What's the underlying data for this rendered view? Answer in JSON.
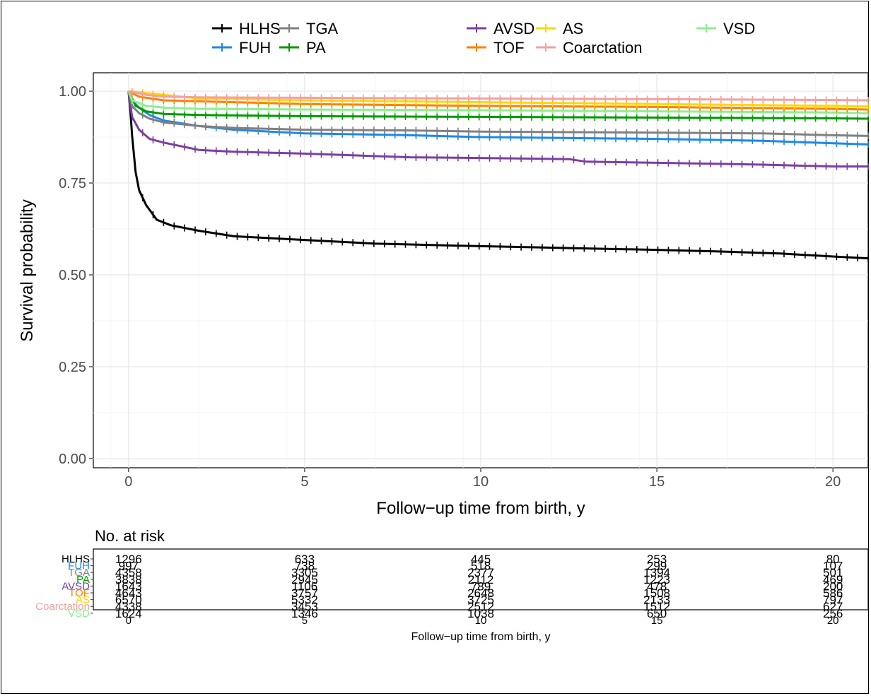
{
  "chart_data": {
    "type": "line",
    "title": "",
    "xlabel": "Follow−up time from birth, y",
    "ylabel": "Survival probability",
    "xlim": [
      -1,
      21
    ],
    "ylim": [
      -0.025,
      1.05
    ],
    "xticks": [
      0,
      5,
      10,
      15,
      20
    ],
    "yticks": [
      0.0,
      0.25,
      0.5,
      0.75,
      1.0
    ],
    "ytick_labels": [
      "0.00",
      "0.25",
      "0.50",
      "0.75",
      "1.00"
    ],
    "grid": true,
    "legend_position": "top",
    "series": [
      {
        "name": "HLHS",
        "color": "#000000",
        "x": [
          0,
          0.05,
          0.1,
          0.2,
          0.3,
          0.5,
          0.8,
          1.2,
          2,
          3,
          5,
          7,
          10,
          13,
          15,
          17,
          18.5,
          20,
          21
        ],
        "y": [
          1.0,
          0.95,
          0.88,
          0.78,
          0.73,
          0.69,
          0.65,
          0.635,
          0.62,
          0.605,
          0.595,
          0.585,
          0.578,
          0.572,
          0.568,
          0.563,
          0.558,
          0.55,
          0.545
        ]
      },
      {
        "name": "FUH",
        "color": "#1E88E5",
        "x": [
          0,
          0.1,
          0.3,
          0.6,
          1,
          2,
          3,
          5,
          8,
          10,
          15,
          18,
          20,
          21
        ],
        "y": [
          1.0,
          0.975,
          0.955,
          0.935,
          0.92,
          0.905,
          0.895,
          0.885,
          0.88,
          0.875,
          0.87,
          0.865,
          0.858,
          0.855
        ]
      },
      {
        "name": "TGA",
        "color": "#808080",
        "x": [
          0,
          0.1,
          0.3,
          0.6,
          1,
          2,
          3,
          5,
          8,
          10,
          15,
          18,
          20,
          21
        ],
        "y": [
          1.0,
          0.96,
          0.94,
          0.925,
          0.915,
          0.905,
          0.9,
          0.895,
          0.893,
          0.89,
          0.887,
          0.885,
          0.88,
          0.878
        ]
      },
      {
        "name": "PA",
        "color": "#009900",
        "x": [
          0,
          0.2,
          0.5,
          1,
          2,
          5,
          10,
          15,
          20,
          21
        ],
        "y": [
          1.0,
          0.96,
          0.945,
          0.938,
          0.935,
          0.932,
          0.93,
          0.928,
          0.926,
          0.925
        ]
      },
      {
        "name": "AVSD",
        "color": "#7B3FA0",
        "x": [
          0,
          0.1,
          0.3,
          0.6,
          1,
          1.5,
          2,
          3,
          5,
          8,
          10,
          12.5,
          13,
          15,
          18,
          20,
          21
        ],
        "y": [
          1.0,
          0.93,
          0.895,
          0.87,
          0.86,
          0.85,
          0.84,
          0.835,
          0.83,
          0.82,
          0.818,
          0.815,
          0.808,
          0.805,
          0.8,
          0.795,
          0.795
        ]
      },
      {
        "name": "TOF",
        "color": "#FF7F00",
        "x": [
          0,
          0.3,
          1,
          3,
          5,
          10,
          15,
          20,
          21
        ],
        "y": [
          1.0,
          0.985,
          0.975,
          0.97,
          0.965,
          0.96,
          0.957,
          0.952,
          0.95
        ]
      },
      {
        "name": "AS",
        "color": "#FFD700",
        "x": [
          0,
          0.5,
          1,
          1.5,
          2,
          5,
          10,
          15,
          20,
          21
        ],
        "y": [
          1.0,
          0.995,
          0.99,
          0.985,
          0.98,
          0.975,
          0.97,
          0.965,
          0.96,
          0.958
        ]
      },
      {
        "name": "Coarctation",
        "color": "#F4A0A0",
        "x": [
          0,
          0.5,
          1,
          2,
          5,
          10,
          15,
          20,
          21
        ],
        "y": [
          1.0,
          0.99,
          0.985,
          0.983,
          0.982,
          0.98,
          0.978,
          0.976,
          0.975
        ]
      },
      {
        "name": "VSD",
        "color": "#90EE90",
        "x": [
          0,
          0.1,
          0.5,
          1,
          2,
          5,
          10,
          15,
          20,
          21
        ],
        "y": [
          1.0,
          0.975,
          0.96,
          0.955,
          0.952,
          0.95,
          0.948,
          0.945,
          0.942,
          0.94
        ]
      }
    ],
    "risk_table": {
      "title": "No. at risk",
      "xlabel": "Follow−up time from birth, y",
      "times": [
        0,
        5,
        10,
        15,
        20
      ],
      "rows": [
        {
          "name": "HLHS",
          "color": "#000000",
          "counts": [
            "1296",
            "633",
            "445",
            "253",
            "80"
          ]
        },
        {
          "name": "FUH",
          "color": "#1E88E5",
          "counts": [
            "997",
            "738",
            "518",
            "299",
            "107"
          ]
        },
        {
          "name": "TGA",
          "color": "#808080",
          "counts": [
            "4358",
            "3305",
            "2377",
            "1394",
            "501"
          ]
        },
        {
          "name": "PA",
          "color": "#009900",
          "counts": [
            "3838",
            "2945",
            "2112",
            "1223",
            "469"
          ]
        },
        {
          "name": "AVSD",
          "color": "#7B3FA0",
          "counts": [
            "1643",
            "1106",
            "789",
            "478",
            "200"
          ]
        },
        {
          "name": "TOF",
          "color": "#FF7F00",
          "counts": [
            "4643",
            "3757",
            "2648",
            "1508",
            "586"
          ]
        },
        {
          "name": "AS",
          "color": "#FFD700",
          "counts": [
            "6570",
            "5332",
            "3725",
            "2133",
            "797"
          ]
        },
        {
          "name": "Coarctation",
          "color": "#F4A0A0",
          "counts": [
            "4338",
            "3453",
            "2512",
            "1512",
            "627"
          ]
        },
        {
          "name": "VSD",
          "color": "#90EE90",
          "counts": [
            "1624",
            "1346",
            "1038",
            "650",
            "256"
          ]
        }
      ]
    }
  }
}
